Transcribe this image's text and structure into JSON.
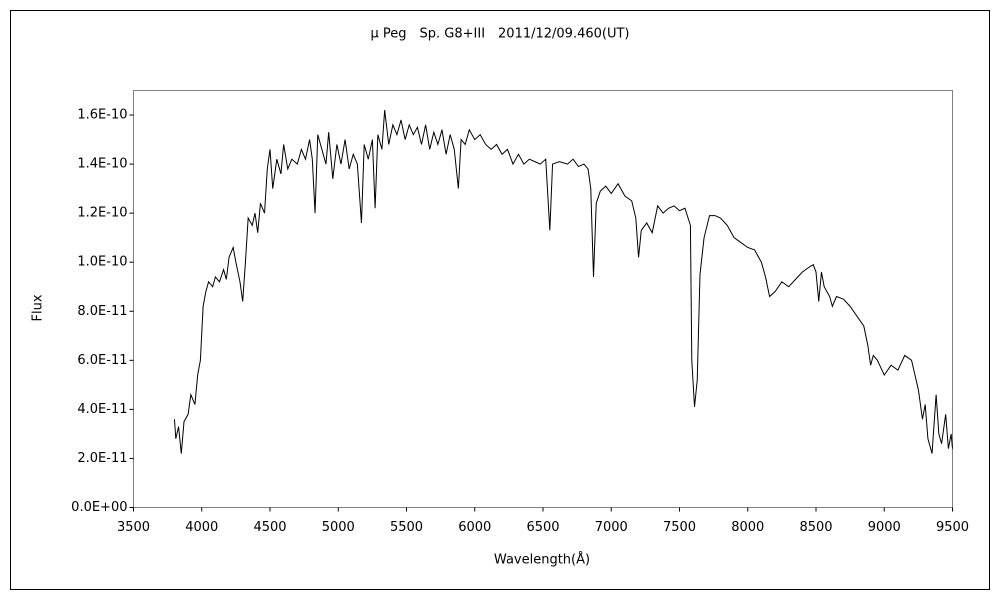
{
  "chart_data": {
    "type": "line",
    "title": "μ Peg　Sp. G8+III　2011/12/09.460(UT)",
    "xlabel": "Wavelength(Å)",
    "ylabel": "Flux",
    "xlim": [
      3500,
      9500
    ],
    "xticks": [
      3500,
      4000,
      4500,
      5000,
      5500,
      6000,
      6500,
      7000,
      7500,
      8000,
      8500,
      9000,
      9500
    ],
    "ylim": [
      0,
      1.7e-10
    ],
    "yticks": [
      {
        "value": 0,
        "label": "0.0E+00"
      },
      {
        "value": 2e-11,
        "label": "2.0E-11"
      },
      {
        "value": 4e-11,
        "label": "4.0E-11"
      },
      {
        "value": 6e-11,
        "label": "6.0E-11"
      },
      {
        "value": 8e-11,
        "label": "8.0E-11"
      },
      {
        "value": 1e-10,
        "label": "1.0E-10"
      },
      {
        "value": 1.2e-10,
        "label": "1.2E-10"
      },
      {
        "value": 1.4e-10,
        "label": "1.4E-10"
      },
      {
        "value": 1.6e-10,
        "label": "1.6E-10"
      }
    ],
    "grid": false,
    "series": [
      {
        "color": "#000000",
        "x": [
          3800,
          3810,
          3830,
          3850,
          3870,
          3900,
          3920,
          3950,
          3970,
          3990,
          4010,
          4030,
          4050,
          4080,
          4100,
          4130,
          4160,
          4180,
          4200,
          4230,
          4250,
          4280,
          4300,
          4320,
          4340,
          4370,
          4390,
          4410,
          4430,
          4460,
          4480,
          4500,
          4520,
          4550,
          4580,
          4600,
          4630,
          4660,
          4700,
          4730,
          4760,
          4790,
          4810,
          4830,
          4850,
          4880,
          4910,
          4930,
          4960,
          4990,
          5020,
          5050,
          5080,
          5110,
          5140,
          5170,
          5190,
          5220,
          5250,
          5270,
          5290,
          5320,
          5340,
          5370,
          5400,
          5430,
          5460,
          5490,
          5520,
          5550,
          5580,
          5610,
          5640,
          5670,
          5700,
          5730,
          5760,
          5790,
          5820,
          5850,
          5880,
          5900,
          5930,
          5960,
          6000,
          6040,
          6080,
          6120,
          6160,
          6200,
          6240,
          6280,
          6320,
          6360,
          6400,
          6440,
          6480,
          6520,
          6550,
          6570,
          6620,
          6680,
          6720,
          6760,
          6800,
          6830,
          6850,
          6870,
          6890,
          6920,
          6960,
          7000,
          7050,
          7100,
          7150,
          7180,
          7200,
          7220,
          7260,
          7300,
          7340,
          7380,
          7420,
          7460,
          7500,
          7540,
          7580,
          7590,
          7610,
          7630,
          7650,
          7680,
          7720,
          7760,
          7800,
          7850,
          7900,
          7950,
          8000,
          8050,
          8100,
          8130,
          8160,
          8200,
          8250,
          8300,
          8350,
          8400,
          8450,
          8480,
          8500,
          8520,
          8540,
          8560,
          8600,
          8620,
          8650,
          8700,
          8750,
          8800,
          8850,
          8880,
          8900,
          8920,
          8950,
          9000,
          9050,
          9100,
          9150,
          9200,
          9250,
          9280,
          9300,
          9320,
          9350,
          9380,
          9400,
          9420,
          9450,
          9470,
          9490,
          9500
        ],
        "values": [
          3.6e-11,
          2.8e-11,
          3.3e-11,
          2.2e-11,
          3.5e-11,
          3.8e-11,
          4.6e-11,
          4.2e-11,
          5.4e-11,
          6e-11,
          8.2e-11,
          8.8e-11,
          9.2e-11,
          9e-11,
          9.4e-11,
          9.2e-11,
          9.7e-11,
          9.3e-11,
          1.02e-10,
          1.06e-10,
          1e-10,
          9.2e-11,
          8.4e-11,
          1e-10,
          1.18e-10,
          1.15e-10,
          1.2e-10,
          1.12e-10,
          1.24e-10,
          1.2e-10,
          1.38e-10,
          1.46e-10,
          1.3e-10,
          1.42e-10,
          1.36e-10,
          1.48e-10,
          1.38e-10,
          1.42e-10,
          1.4e-10,
          1.46e-10,
          1.42e-10,
          1.5e-10,
          1.42e-10,
          1.2e-10,
          1.52e-10,
          1.46e-10,
          1.4e-10,
          1.53e-10,
          1.34e-10,
          1.48e-10,
          1.4e-10,
          1.5e-10,
          1.38e-10,
          1.44e-10,
          1.4e-10,
          1.16e-10,
          1.48e-10,
          1.42e-10,
          1.5e-10,
          1.22e-10,
          1.52e-10,
          1.46e-10,
          1.62e-10,
          1.48e-10,
          1.56e-10,
          1.52e-10,
          1.58e-10,
          1.5e-10,
          1.56e-10,
          1.52e-10,
          1.55e-10,
          1.48e-10,
          1.56e-10,
          1.46e-10,
          1.53e-10,
          1.48e-10,
          1.54e-10,
          1.44e-10,
          1.52e-10,
          1.46e-10,
          1.3e-10,
          1.5e-10,
          1.48e-10,
          1.54e-10,
          1.5e-10,
          1.52e-10,
          1.48e-10,
          1.46e-10,
          1.48e-10,
          1.44e-10,
          1.46e-10,
          1.4e-10,
          1.44e-10,
          1.4e-10,
          1.42e-10,
          1.41e-10,
          1.4e-10,
          1.42e-10,
          1.13e-10,
          1.4e-10,
          1.41e-10,
          1.4e-10,
          1.42e-10,
          1.39e-10,
          1.4e-10,
          1.38e-10,
          1.3e-10,
          9.4e-11,
          1.24e-10,
          1.29e-10,
          1.31e-10,
          1.28e-10,
          1.32e-10,
          1.27e-10,
          1.25e-10,
          1.18e-10,
          1.02e-10,
          1.13e-10,
          1.16e-10,
          1.12e-10,
          1.23e-10,
          1.2e-10,
          1.22e-10,
          1.23e-10,
          1.21e-10,
          1.22e-10,
          1.15e-10,
          6e-11,
          4.1e-11,
          5.2e-11,
          9.5e-11,
          1.1e-10,
          1.19e-10,
          1.19e-10,
          1.18e-10,
          1.15e-10,
          1.1e-10,
          1.08e-10,
          1.06e-10,
          1.05e-10,
          1e-10,
          9.4e-11,
          8.6e-11,
          8.8e-11,
          9.2e-11,
          9e-11,
          9.3e-11,
          9.6e-11,
          9.8e-11,
          9.9e-11,
          9.6e-11,
          8.4e-11,
          9.6e-11,
          9e-11,
          8.6e-11,
          8.2e-11,
          8.6e-11,
          8.5e-11,
          8.2e-11,
          7.8e-11,
          7.4e-11,
          6.6e-11,
          5.8e-11,
          6.2e-11,
          6e-11,
          5.4e-11,
          5.8e-11,
          5.6e-11,
          6.2e-11,
          6e-11,
          4.8e-11,
          3.6e-11,
          4.2e-11,
          2.8e-11,
          2.2e-11,
          4.6e-11,
          3e-11,
          2.6e-11,
          3.8e-11,
          2.4e-11,
          3e-11,
          2.4e-11
        ]
      }
    ]
  }
}
